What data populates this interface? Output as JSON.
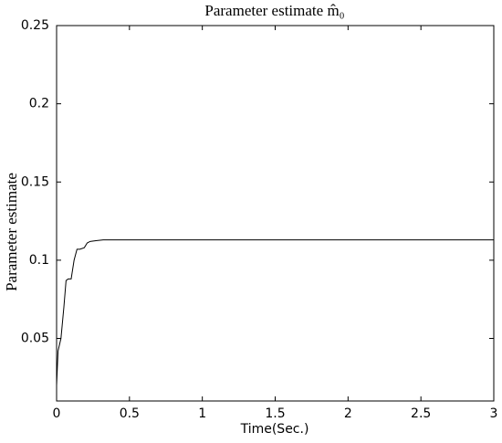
{
  "chart_data": {
    "type": "line",
    "title": "Parameter estimate m̂₀",
    "x_label": "Time(Sec.)",
    "y_label": "Parameter estimate",
    "series": [
      {
        "name": "m0",
        "color": "#000000",
        "x": [
          0,
          0.01,
          0.03,
          0.05,
          0.065,
          0.08,
          0.1,
          0.12,
          0.14,
          0.16,
          0.19,
          0.21,
          0.23,
          0.27,
          0.32,
          0.4,
          1,
          2,
          3
        ],
        "values": [
          0.02,
          0.042,
          0.05,
          0.07,
          0.087,
          0.088,
          0.088,
          0.1,
          0.107,
          0.107,
          0.108,
          0.111,
          0.112,
          0.1125,
          0.113,
          0.113,
          0.113,
          0.113,
          0.113
        ]
      }
    ],
    "xlim": [
      0,
      3
    ],
    "xticks": [
      0,
      0.5,
      1,
      1.5,
      2,
      2.5,
      3
    ],
    "ylim": [
      0.01,
      0.25
    ],
    "yticks": [
      0.05,
      0.1,
      0.15,
      0.2,
      0.25
    ]
  }
}
